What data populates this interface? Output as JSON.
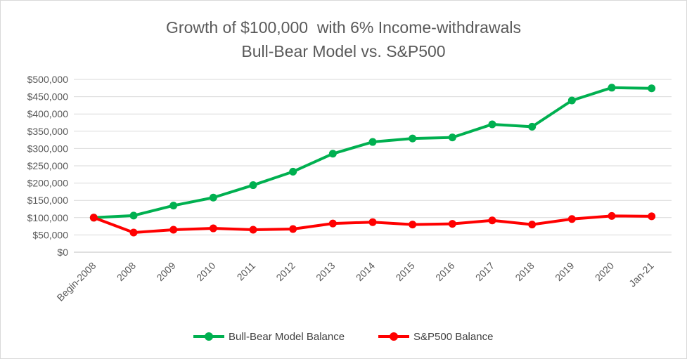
{
  "chart_data": {
    "type": "line",
    "title": "Growth of $100,000  with 6% Income-withdrawals",
    "subtitle": "Bull-Bear Model vs. S&P500",
    "categories": [
      "Begin-2008",
      "2008",
      "2009",
      "2010",
      "2011",
      "2012",
      "2013",
      "2014",
      "2015",
      "2016",
      "2017",
      "2018",
      "2019",
      "2020",
      "Jan-21"
    ],
    "series": [
      {
        "name": "Bull-Bear Model Balance",
        "color": "#00b050",
        "values": [
          100000,
          106000,
          135000,
          158000,
          194000,
          233000,
          285000,
          319000,
          329000,
          332000,
          370000,
          363000,
          439000,
          476000,
          474000
        ]
      },
      {
        "name": "S&P500 Balance",
        "color": "#ff0000",
        "values": [
          100000,
          57000,
          65000,
          69000,
          65000,
          67000,
          83000,
          87000,
          80000,
          82000,
          92000,
          80000,
          96000,
          105000,
          104000
        ]
      }
    ],
    "yticks": [
      "$0",
      "$50,000",
      "$100,000",
      "$150,000",
      "$200,000",
      "$250,000",
      "$300,000",
      "$350,000",
      "$400,000",
      "$450,000",
      "$500,000"
    ],
    "ylim": [
      0,
      500000
    ],
    "grid": true,
    "legend": "bottom"
  }
}
